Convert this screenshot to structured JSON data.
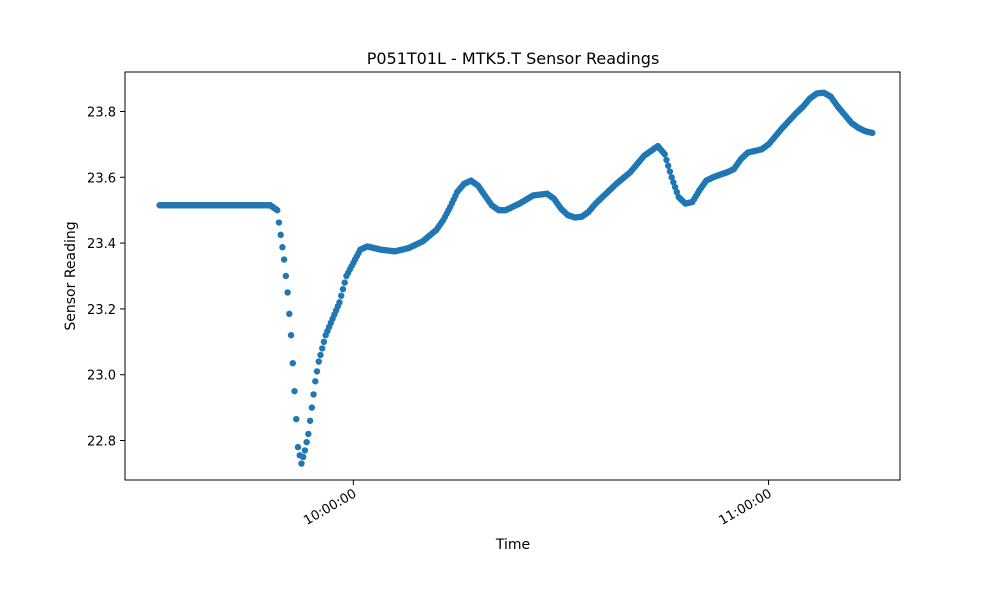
{
  "chart_data": {
    "type": "scatter",
    "title": "P051T01L - MTK5.T Sensor Readings",
    "xlabel": "Time",
    "ylabel": "Sensor Reading",
    "x_ticks": [
      "10:00:00",
      "11:00:00"
    ],
    "y_ticks": [
      "22.8",
      "23.0",
      "23.2",
      "23.4",
      "23.6",
      "23.8"
    ],
    "xlim": [
      "09:27:00",
      "11:19:00"
    ],
    "ylim": [
      22.68,
      23.92
    ],
    "grid": false,
    "marker_color": "#1f77b4",
    "series": [
      {
        "x": [
          "09:32:00",
          "09:34:00",
          "09:36:00",
          "09:38:00",
          "09:40:00",
          "09:42:00",
          "09:44:00",
          "09:46:00",
          "09:48:00",
          "09:49:00",
          "09:50:00",
          "09:50:30",
          "09:51:00",
          "09:51:30",
          "09:52:00",
          "09:52:30",
          "09:53:00",
          "09:53:30",
          "09:54:00",
          "09:54:30",
          "09:55:00",
          "09:56:00",
          "09:57:00",
          "09:58:00",
          "09:59:00",
          "10:00:00",
          "10:01:00",
          "10:02:00",
          "10:04:00",
          "10:06:00",
          "10:08:00",
          "10:10:00",
          "10:12:00",
          "10:13:00",
          "10:14:00",
          "10:15:00",
          "10:16:00",
          "10:17:00",
          "10:18:00",
          "10:19:00",
          "10:20:00",
          "10:21:00",
          "10:22:00",
          "10:23:00",
          "10:24:00",
          "10:26:00",
          "10:28:00",
          "10:29:00",
          "10:30:00",
          "10:31:00",
          "10:32:00",
          "10:33:00",
          "10:34:00",
          "10:35:00",
          "10:36:00",
          "10:38:00",
          "10:40:00",
          "10:42:00",
          "10:44:00",
          "10:45:00",
          "10:46:00",
          "10:47:00",
          "10:48:00",
          "10:49:00",
          "10:50:00",
          "10:51:00",
          "10:52:00",
          "10:53:00",
          "10:54:00",
          "10:55:00",
          "10:56:00",
          "10:57:00",
          "10:58:00",
          "10:59:00",
          "11:00:00",
          "11:02:00",
          "11:04:00",
          "11:05:00",
          "11:06:00",
          "11:07:00",
          "11:08:00",
          "11:09:00",
          "11:10:00",
          "11:11:00",
          "11:12:00",
          "11:13:00",
          "11:14:00",
          "11:15:00"
        ],
        "y": [
          23.515,
          23.515,
          23.515,
          23.515,
          23.515,
          23.515,
          23.515,
          23.515,
          23.515,
          23.5,
          23.35,
          23.25,
          23.12,
          22.95,
          22.78,
          22.73,
          22.77,
          22.82,
          22.9,
          22.98,
          23.04,
          23.12,
          23.17,
          23.22,
          23.3,
          23.34,
          23.38,
          23.39,
          23.38,
          23.375,
          23.385,
          23.405,
          23.44,
          23.47,
          23.51,
          23.555,
          23.58,
          23.59,
          23.575,
          23.545,
          23.515,
          23.5,
          23.5,
          23.51,
          23.52,
          23.545,
          23.55,
          23.535,
          23.505,
          23.485,
          23.478,
          23.48,
          23.495,
          23.52,
          23.54,
          23.58,
          23.615,
          23.665,
          23.695,
          23.67,
          23.6,
          23.54,
          23.52,
          23.525,
          23.56,
          23.59,
          23.6,
          23.608,
          23.615,
          23.625,
          23.655,
          23.675,
          23.68,
          23.685,
          23.7,
          23.75,
          23.795,
          23.815,
          23.84,
          23.855,
          23.857,
          23.845,
          23.815,
          23.79,
          23.765,
          23.75,
          23.74,
          23.735
        ]
      }
    ]
  }
}
